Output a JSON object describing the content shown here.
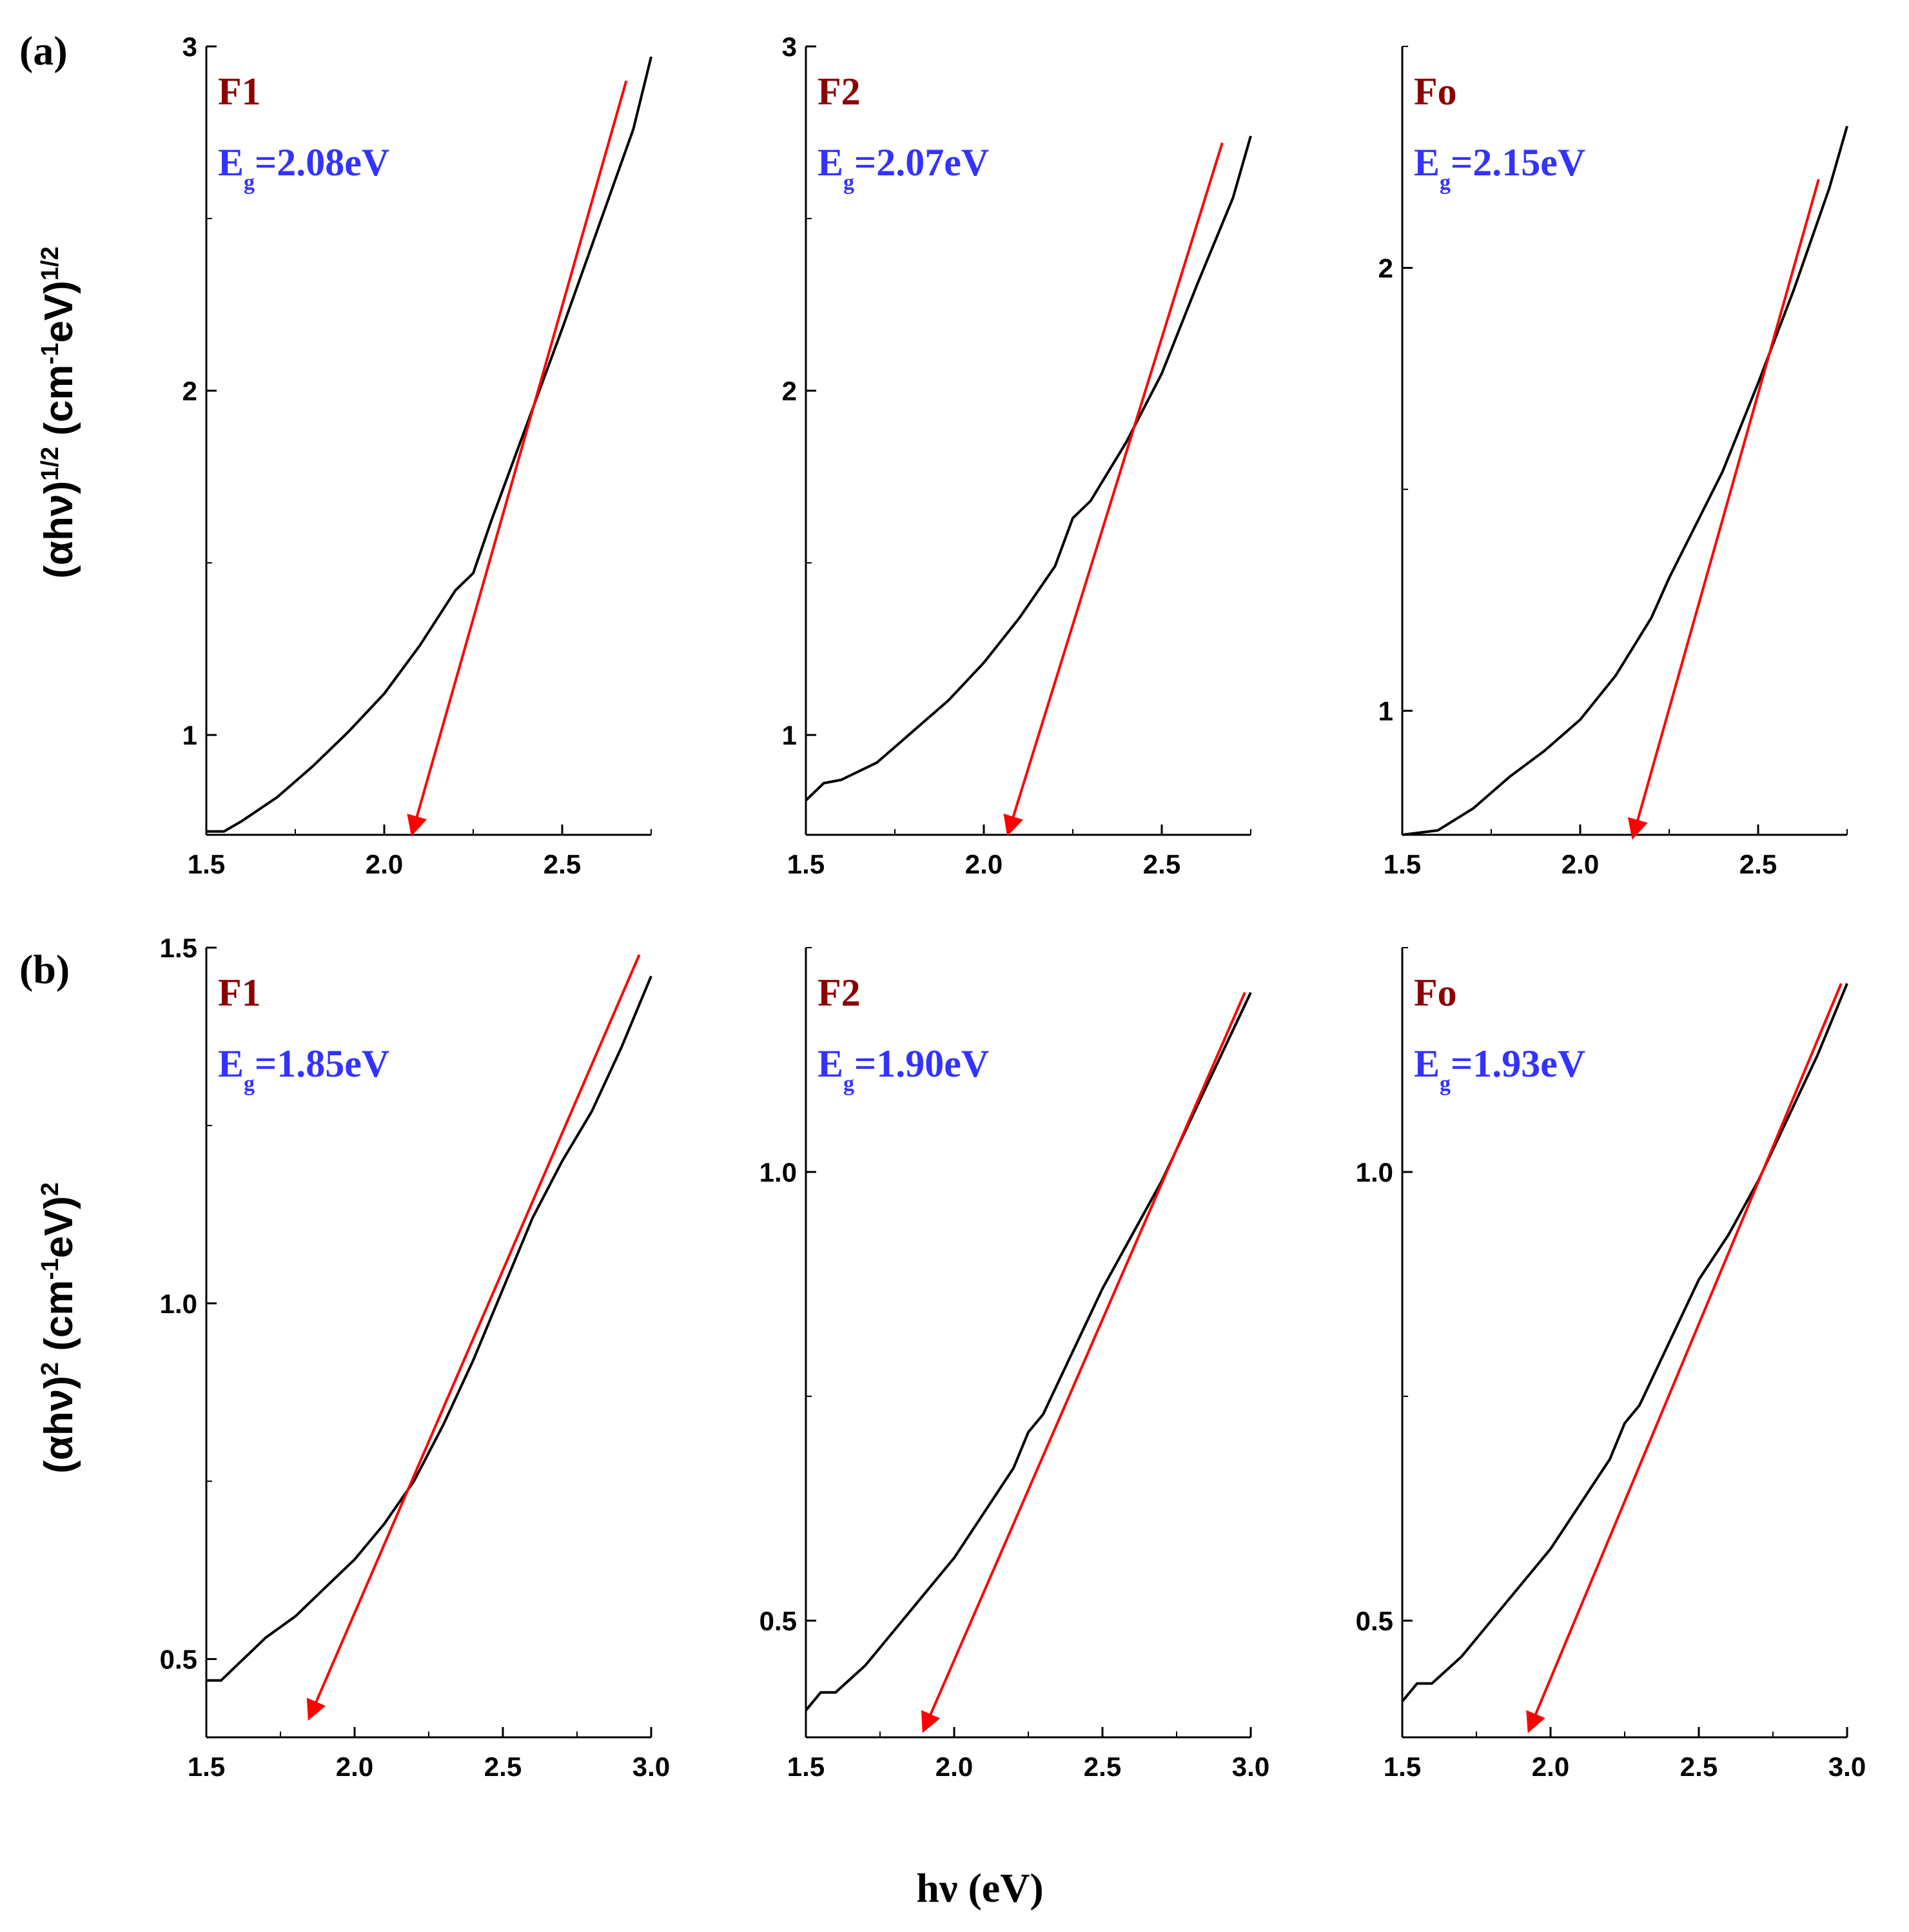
{
  "figure": {
    "row_a_label": "(a)",
    "row_b_label": "(b)",
    "xlabel": "hν (eV)"
  },
  "colors": {
    "curve": "#000000",
    "fit_line": "#ff0000",
    "sample_label": "#8b0000",
    "eg_label": "#3333ff"
  },
  "chart_data": [
    {
      "type": "line",
      "row": "a",
      "panel": "F1",
      "sample": "F1",
      "eg_text": "=2.08eV",
      "eg_value": 2.08,
      "ylabel_parts": [
        "(αhν)",
        "1/2",
        " (cm",
        "-1",
        "eV)",
        "1/2"
      ],
      "xlim": [
        1.5,
        2.75
      ],
      "ylim": [
        0.71,
        3.0
      ],
      "xticks": [
        1.5,
        2.0,
        2.5
      ],
      "xtick_labels": [
        "1.5",
        "2.0",
        "2.5"
      ],
      "yticks": [
        1,
        2,
        3
      ],
      "ytick_labels": [
        "1",
        "2",
        "3"
      ],
      "curve_x": [
        1.5,
        1.55,
        1.6,
        1.7,
        1.8,
        1.9,
        2.0,
        2.1,
        2.2,
        2.25,
        2.3,
        2.4,
        2.5,
        2.6,
        2.7,
        2.75
      ],
      "curve_y": [
        0.72,
        0.72,
        0.75,
        0.82,
        0.91,
        1.01,
        1.12,
        1.26,
        1.42,
        1.47,
        1.62,
        1.9,
        2.18,
        2.47,
        2.76,
        2.97
      ],
      "fit_line": {
        "from": [
          2.68,
          2.9
        ],
        "to": [
          2.08,
          0.72
        ]
      }
    },
    {
      "type": "line",
      "row": "a",
      "panel": "F2",
      "sample": "F2",
      "eg_text": "=2.07eV",
      "eg_value": 2.07,
      "xlim": [
        1.5,
        2.75
      ],
      "ylim": [
        0.71,
        3.0
      ],
      "xticks": [
        1.5,
        2.0,
        2.5
      ],
      "xtick_labels": [
        "1.5",
        "2.0",
        "2.5"
      ],
      "yticks": [
        1,
        2,
        3
      ],
      "ytick_labels": [
        "1",
        "2",
        "3"
      ],
      "curve_x": [
        1.5,
        1.55,
        1.6,
        1.7,
        1.8,
        1.9,
        2.0,
        2.1,
        2.2,
        2.25,
        2.3,
        2.4,
        2.5,
        2.6,
        2.7,
        2.75
      ],
      "curve_y": [
        0.81,
        0.86,
        0.87,
        0.92,
        1.01,
        1.1,
        1.21,
        1.34,
        1.49,
        1.63,
        1.68,
        1.85,
        2.05,
        2.31,
        2.56,
        2.74
      ],
      "fit_line": {
        "from": [
          2.67,
          2.72
        ],
        "to": [
          2.07,
          0.72
        ]
      }
    },
    {
      "type": "line",
      "row": "a",
      "panel": "Fo",
      "sample": "Fo",
      "eg_text": "=2.15eV",
      "eg_value": 2.15,
      "xlim": [
        1.5,
        2.75
      ],
      "ylim": [
        0.72,
        2.5
      ],
      "xticks": [
        1.5,
        2.0,
        2.5
      ],
      "xtick_labels": [
        "1.5",
        "2.0",
        "2.5"
      ],
      "yticks": [
        1,
        2
      ],
      "ytick_labels": [
        "1",
        "2"
      ],
      "curve_x": [
        1.5,
        1.6,
        1.7,
        1.8,
        1.9,
        2.0,
        2.1,
        2.2,
        2.25,
        2.3,
        2.4,
        2.5,
        2.6,
        2.7,
        2.75
      ],
      "curve_y": [
        0.72,
        0.73,
        0.78,
        0.85,
        0.91,
        0.98,
        1.08,
        1.21,
        1.3,
        1.38,
        1.54,
        1.74,
        1.95,
        2.18,
        2.32
      ],
      "fit_line": {
        "from": [
          2.67,
          2.2
        ],
        "to": [
          2.15,
          0.72
        ]
      }
    },
    {
      "type": "line",
      "row": "b",
      "panel": "F1",
      "sample": "F1",
      "eg_text": "=1.85eV",
      "eg_value": 1.85,
      "ylabel_parts": [
        "(αhν)",
        "2",
        " (cm",
        "-1",
        "eV)",
        "2"
      ],
      "xlim": [
        1.5,
        3.0
      ],
      "ylim": [
        0.39,
        1.5
      ],
      "xticks": [
        1.5,
        2.0,
        2.5,
        3.0
      ],
      "xtick_labels": [
        "1.5",
        "2.0",
        "2.5",
        "3.0"
      ],
      "yticks": [
        0.5,
        1.0,
        1.5
      ],
      "ytick_labels": [
        "0.5",
        "1.0",
        "1.5"
      ],
      "curve_x": [
        1.5,
        1.55,
        1.6,
        1.7,
        1.8,
        1.9,
        2.0,
        2.1,
        2.2,
        2.3,
        2.4,
        2.5,
        2.6,
        2.7,
        2.8,
        2.9,
        3.0
      ],
      "curve_y": [
        0.47,
        0.47,
        0.49,
        0.53,
        0.56,
        0.6,
        0.64,
        0.69,
        0.75,
        0.83,
        0.92,
        1.02,
        1.12,
        1.2,
        1.27,
        1.36,
        1.46
      ],
      "fit_line": {
        "from": [
          2.96,
          1.49
        ],
        "to": [
          1.85,
          0.42
        ]
      }
    },
    {
      "type": "line",
      "row": "b",
      "panel": "F2",
      "sample": "F2",
      "eg_text": "=1.90eV",
      "eg_value": 1.9,
      "xlim": [
        1.5,
        3.0
      ],
      "ylim": [
        0.37,
        1.25
      ],
      "xticks": [
        1.5,
        2.0,
        2.5,
        3.0
      ],
      "xtick_labels": [
        "1.5",
        "2.0",
        "2.5",
        "3.0"
      ],
      "yticks": [
        0.5,
        1.0
      ],
      "ytick_labels": [
        "0.5",
        "1.0"
      ],
      "curve_x": [
        1.5,
        1.55,
        1.6,
        1.7,
        1.8,
        1.9,
        2.0,
        2.1,
        2.2,
        2.25,
        2.3,
        2.4,
        2.5,
        2.6,
        2.7,
        2.8,
        2.9,
        3.0
      ],
      "curve_y": [
        0.4,
        0.42,
        0.42,
        0.45,
        0.49,
        0.53,
        0.57,
        0.62,
        0.67,
        0.71,
        0.73,
        0.8,
        0.87,
        0.93,
        0.99,
        1.06,
        1.13,
        1.2
      ],
      "fit_line": {
        "from": [
          2.98,
          1.2
        ],
        "to": [
          1.9,
          0.38
        ]
      }
    },
    {
      "type": "line",
      "row": "b",
      "panel": "Fo",
      "sample": "Fo",
      "eg_text": "=1.93eV",
      "eg_value": 1.93,
      "xlim": [
        1.5,
        3.0
      ],
      "ylim": [
        0.37,
        1.25
      ],
      "xticks": [
        1.5,
        2.0,
        2.5,
        3.0
      ],
      "xtick_labels": [
        "1.5",
        "2.0",
        "2.5",
        "3.0"
      ],
      "yticks": [
        0.5,
        1.0
      ],
      "ytick_labels": [
        "0.5",
        "1.0"
      ],
      "curve_x": [
        1.5,
        1.55,
        1.6,
        1.7,
        1.8,
        1.9,
        2.0,
        2.1,
        2.2,
        2.25,
        2.3,
        2.4,
        2.5,
        2.6,
        2.7,
        2.8,
        2.9,
        3.0
      ],
      "curve_y": [
        0.41,
        0.43,
        0.43,
        0.46,
        0.5,
        0.54,
        0.58,
        0.63,
        0.68,
        0.72,
        0.74,
        0.81,
        0.88,
        0.93,
        0.99,
        1.06,
        1.13,
        1.21
      ],
      "fit_line": {
        "from": [
          2.98,
          1.21
        ],
        "to": [
          1.93,
          0.38
        ]
      }
    }
  ]
}
